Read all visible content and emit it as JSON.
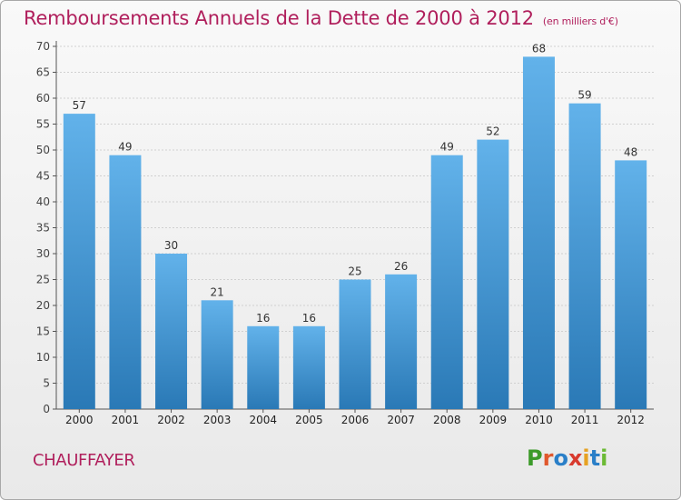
{
  "title": "Remboursements Annuels de la Dette de 2000 à 2012",
  "unit_note": "(en milliers d'€)",
  "commune": "CHAUFFAYER",
  "logo_text": "Proxiti",
  "colors": {
    "title": "#b01f5c",
    "bar_top": "#62b2ea",
    "bar_bottom": "#2a79b6",
    "logo_letters": [
      "#3c9a2a",
      "#e0582d",
      "#2a7fc8",
      "#d83a2e",
      "#e6a223",
      "#2a7fc8",
      "#6cba35"
    ]
  },
  "chart_data": {
    "type": "bar",
    "categories": [
      "2000",
      "2001",
      "2002",
      "2003",
      "2004",
      "2005",
      "2006",
      "2007",
      "2008",
      "2009",
      "2010",
      "2011",
      "2012"
    ],
    "values": [
      57,
      49,
      30,
      21,
      16,
      16,
      25,
      26,
      49,
      52,
      68,
      59,
      48
    ],
    "title": "Remboursements Annuels de la Dette de 2000 à 2012",
    "ylim": [
      0,
      70
    ],
    "yticks": [
      0,
      5,
      10,
      15,
      20,
      25,
      30,
      35,
      40,
      45,
      50,
      55,
      60,
      65,
      70
    ],
    "grid": true
  }
}
